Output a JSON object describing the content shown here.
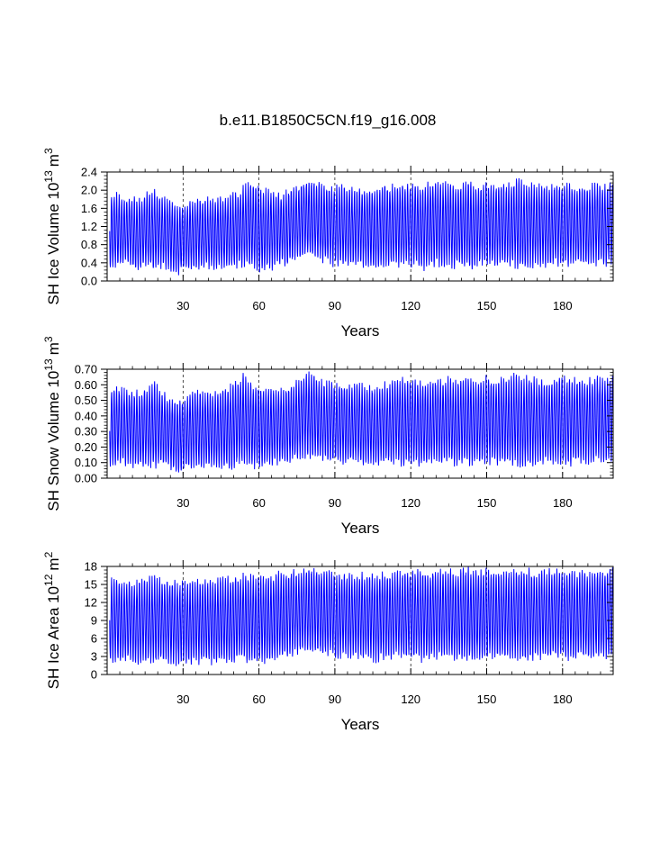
{
  "figure": {
    "title": "b.e11.B1850C5CN.f19_g16.008"
  },
  "chart_data": [
    {
      "type": "line",
      "ylabel": "SH Ice Volume 10",
      "ylabel_exp": "13",
      "ylabel_unit": "m",
      "ylabel_unit_exp": "3",
      "xlabel": "Years",
      "xlim": [
        0,
        200
      ],
      "ylim": [
        0,
        2.4
      ],
      "xticks": [
        30,
        60,
        90,
        120,
        150,
        180
      ],
      "xtick_labels": [
        "30",
        "60",
        "90",
        "120",
        "150",
        "180"
      ],
      "yticks": [
        0,
        0.4,
        0.8,
        1.2,
        1.6,
        2.0,
        2.4
      ],
      "ytick_labels": [
        "0.0",
        "0.4",
        "0.8",
        "1.2",
        "1.6",
        "2.0",
        "2.4"
      ],
      "grid": "vertical-dashed",
      "color": "#0000ff",
      "series": [
        {
          "x_start": 1,
          "x_end": 200,
          "max": [
            1.85,
            1.88,
            1.8,
            1.82,
            1.8,
            1.78,
            1.9,
            1.95,
            1.85,
            1.8,
            1.65,
            1.6,
            1.7,
            1.75,
            1.78,
            1.78,
            1.76,
            1.8,
            1.82,
            1.85,
            1.9,
            2.05,
            2.1,
            2.05,
            1.92,
            2.0,
            1.9,
            1.88,
            1.95,
            2.02,
            2.1,
            2.18,
            2.2,
            2.1,
            2.05,
            2.02,
            2.05,
            2.05,
            2.02,
            2.0,
            2.0,
            1.96,
            1.98,
            2.1,
            2.05,
            2.08,
            2.1,
            2.05,
            2.12,
            2.0,
            2.1,
            2.15,
            2.1,
            2.12,
            2.05,
            2.05,
            2.2,
            2.1,
            2.05,
            2.12,
            2.05,
            2.05,
            2.08,
            2.1,
            2.18,
            2.1,
            2.08,
            2.05,
            2.05,
            2.05,
            2.08,
            2.1,
            2.1,
            2.05,
            2.05,
            2.05,
            2.1,
            2.12,
            2.05,
            2.1
          ],
          "min": [
            0.35,
            0.35,
            0.4,
            0.38,
            0.3,
            0.32,
            0.35,
            0.3,
            0.35,
            0.3,
            0.25,
            0.2,
            0.3,
            0.3,
            0.3,
            0.35,
            0.3,
            0.3,
            0.35,
            0.3,
            0.35,
            0.4,
            0.35,
            0.3,
            0.28,
            0.3,
            0.35,
            0.4,
            0.4,
            0.5,
            0.55,
            0.6,
            0.55,
            0.5,
            0.45,
            0.4,
            0.4,
            0.4,
            0.4,
            0.4,
            0.38,
            0.35,
            0.3,
            0.35,
            0.4,
            0.4,
            0.38,
            0.35,
            0.4,
            0.3,
            0.35,
            0.4,
            0.35,
            0.4,
            0.35,
            0.4,
            0.35,
            0.3,
            0.4,
            0.42,
            0.4,
            0.4,
            0.38,
            0.4,
            0.35,
            0.3,
            0.35,
            0.4,
            0.4,
            0.35,
            0.4,
            0.38,
            0.35,
            0.4,
            0.4,
            0.35,
            0.4,
            0.42,
            0.4,
            0.45
          ]
        }
      ]
    },
    {
      "type": "line",
      "ylabel": "SH Snow Volume 10",
      "ylabel_exp": "13",
      "ylabel_unit": "m",
      "ylabel_unit_exp": "3",
      "xlabel": "Years",
      "xlim": [
        0,
        200
      ],
      "ylim": [
        0,
        0.7
      ],
      "xticks": [
        30,
        60,
        90,
        120,
        150,
        180
      ],
      "xtick_labels": [
        "30",
        "60",
        "90",
        "120",
        "150",
        "180"
      ],
      "yticks": [
        0,
        0.1,
        0.2,
        0.3,
        0.4,
        0.5,
        0.6,
        0.7
      ],
      "ytick_labels": [
        "0.00",
        "0.10",
        "0.20",
        "0.30",
        "0.40",
        "0.50",
        "0.60",
        "0.70"
      ],
      "grid": "vertical-dashed",
      "color": "#0000ff",
      "series": [
        {
          "x_start": 1,
          "x_end": 200,
          "max": [
            0.56,
            0.57,
            0.56,
            0.55,
            0.54,
            0.55,
            0.58,
            0.6,
            0.55,
            0.52,
            0.5,
            0.48,
            0.5,
            0.55,
            0.55,
            0.54,
            0.53,
            0.55,
            0.56,
            0.58,
            0.62,
            0.65,
            0.6,
            0.58,
            0.57,
            0.58,
            0.57,
            0.56,
            0.58,
            0.6,
            0.63,
            0.66,
            0.66,
            0.62,
            0.6,
            0.6,
            0.6,
            0.6,
            0.6,
            0.59,
            0.58,
            0.57,
            0.58,
            0.6,
            0.6,
            0.62,
            0.63,
            0.6,
            0.62,
            0.6,
            0.6,
            0.63,
            0.62,
            0.63,
            0.61,
            0.62,
            0.66,
            0.63,
            0.61,
            0.64,
            0.62,
            0.62,
            0.63,
            0.64,
            0.66,
            0.64,
            0.63,
            0.62,
            0.62,
            0.62,
            0.63,
            0.63,
            0.63,
            0.62,
            0.62,
            0.62,
            0.63,
            0.64,
            0.62,
            0.64
          ],
          "min": [
            0.1,
            0.1,
            0.1,
            0.1,
            0.08,
            0.09,
            0.1,
            0.08,
            0.09,
            0.08,
            0.06,
            0.05,
            0.08,
            0.08,
            0.08,
            0.09,
            0.08,
            0.08,
            0.09,
            0.08,
            0.1,
            0.1,
            0.09,
            0.08,
            0.08,
            0.09,
            0.1,
            0.11,
            0.11,
            0.13,
            0.14,
            0.15,
            0.14,
            0.13,
            0.12,
            0.11,
            0.11,
            0.11,
            0.11,
            0.11,
            0.1,
            0.1,
            0.09,
            0.1,
            0.11,
            0.11,
            0.1,
            0.1,
            0.11,
            0.09,
            0.1,
            0.11,
            0.1,
            0.11,
            0.1,
            0.11,
            0.1,
            0.09,
            0.11,
            0.12,
            0.11,
            0.11,
            0.1,
            0.11,
            0.1,
            0.09,
            0.1,
            0.11,
            0.11,
            0.1,
            0.11,
            0.11,
            0.1,
            0.11,
            0.11,
            0.1,
            0.11,
            0.12,
            0.11,
            0.12
          ]
        }
      ]
    },
    {
      "type": "line",
      "ylabel": "SH Ice Area 10",
      "ylabel_exp": "12",
      "ylabel_unit": "m",
      "ylabel_unit_exp": "2",
      "xlabel": "Years",
      "xlim": [
        0,
        200
      ],
      "ylim": [
        0,
        18
      ],
      "xticks": [
        30,
        60,
        90,
        120,
        150,
        180
      ],
      "xtick_labels": [
        "30",
        "60",
        "90",
        "120",
        "150",
        "180"
      ],
      "yticks": [
        0,
        3,
        6,
        9,
        12,
        15,
        18
      ],
      "ytick_labels": [
        "0",
        "3",
        "6",
        "9",
        "12",
        "15",
        "18"
      ],
      "grid": "vertical-dashed",
      "color": "#0000ff",
      "series": [
        {
          "x_start": 1,
          "x_end": 200,
          "max": [
            15.5,
            15.4,
            15.2,
            15.0,
            15.2,
            15.5,
            15.8,
            15.9,
            15.6,
            15.4,
            15.2,
            15.0,
            15.1,
            15.2,
            15.3,
            15.2,
            15.2,
            15.4,
            15.6,
            15.8,
            16.0,
            16.2,
            16.0,
            15.8,
            16.0,
            16.3,
            16.5,
            16.6,
            16.8,
            17.0,
            17.2,
            17.4,
            17.3,
            17.0,
            16.8,
            16.6,
            16.5,
            16.4,
            16.5,
            16.4,
            16.4,
            16.3,
            16.4,
            16.6,
            16.5,
            16.5,
            16.7,
            16.6,
            17.0,
            16.8,
            16.8,
            17.1,
            16.9,
            17.0,
            16.8,
            16.9,
            17.2,
            17.0,
            16.8,
            17.0,
            16.9,
            16.9,
            17.0,
            17.1,
            17.3,
            17.1,
            17.0,
            16.9,
            16.9,
            16.9,
            17.0,
            17.0,
            17.0,
            16.9,
            16.9,
            16.9,
            17.0,
            17.2,
            16.9,
            17.1
          ],
          "min": [
            2.5,
            2.5,
            2.8,
            2.6,
            2.2,
            2.4,
            2.6,
            2.2,
            2.5,
            2.3,
            2.0,
            1.8,
            2.2,
            2.3,
            2.3,
            2.5,
            2.3,
            2.3,
            2.6,
            2.3,
            2.6,
            2.8,
            2.6,
            2.4,
            2.3,
            2.5,
            2.8,
            3.2,
            3.3,
            3.8,
            4.0,
            4.2,
            4.0,
            3.8,
            3.5,
            3.2,
            3.2,
            3.2,
            3.2,
            3.2,
            3.0,
            2.9,
            2.6,
            2.9,
            3.2,
            3.2,
            3.0,
            2.9,
            3.2,
            2.6,
            2.9,
            3.2,
            2.9,
            3.2,
            2.9,
            3.2,
            2.9,
            2.6,
            3.2,
            3.3,
            3.2,
            3.2,
            3.0,
            3.2,
            2.9,
            2.6,
            2.9,
            3.2,
            3.2,
            2.9,
            3.2,
            3.1,
            2.9,
            3.2,
            3.2,
            2.9,
            3.2,
            3.3,
            3.2,
            3.4
          ]
        }
      ]
    }
  ]
}
